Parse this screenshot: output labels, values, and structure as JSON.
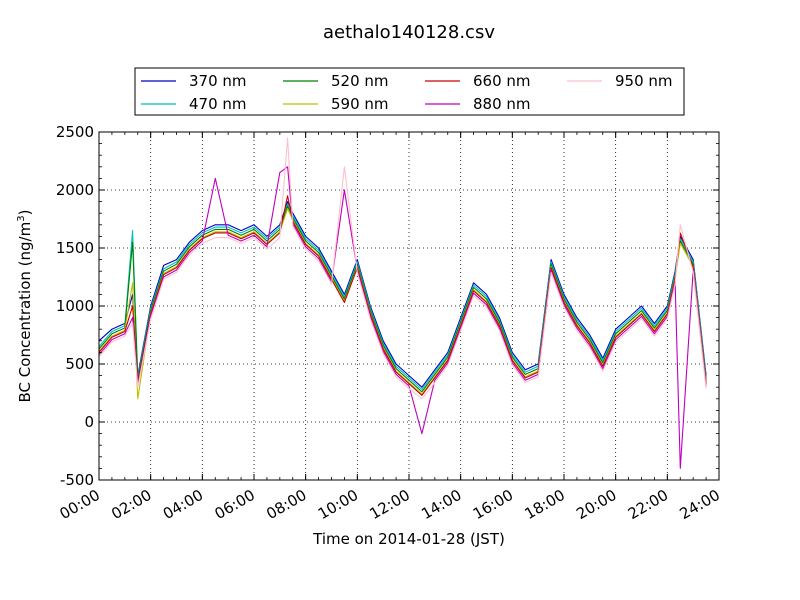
{
  "chart_data": {
    "type": "line",
    "title": "aethalo140128.csv",
    "xlabel": "Time on 2014-01-28 (JST)",
    "ylabel": "BC Concentration (ng/m",
    "ylabel_sup": "3",
    "ylabel_end": ")",
    "xlim": [
      "00:00",
      "24:00"
    ],
    "ylim": [
      -500,
      2500
    ],
    "x_ticks": [
      "00:00",
      "02:00",
      "04:00",
      "06:00",
      "08:00",
      "10:00",
      "12:00",
      "14:00",
      "16:00",
      "18:00",
      "20:00",
      "22:00",
      "24:00"
    ],
    "y_ticks": [
      "-500",
      "0",
      "500",
      "1000",
      "1500",
      "2000",
      "2500"
    ],
    "grid": true,
    "legend_position": "top-center",
    "x_hours": [
      0.0,
      0.5,
      1.0,
      1.3,
      1.5,
      2.0,
      2.5,
      3.0,
      3.5,
      4.0,
      4.5,
      5.0,
      5.5,
      6.0,
      6.5,
      7.0,
      7.3,
      7.5,
      8.0,
      8.5,
      9.0,
      9.5,
      10.0,
      10.5,
      11.0,
      11.5,
      12.0,
      12.5,
      13.0,
      13.5,
      14.0,
      14.5,
      15.0,
      15.5,
      16.0,
      16.5,
      17.0,
      17.5,
      18.0,
      18.5,
      19.0,
      19.5,
      20.0,
      20.5,
      21.0,
      21.5,
      22.0,
      22.3,
      22.5,
      23.0,
      23.5
    ],
    "series": [
      {
        "name": "370 nm",
        "color": "#0000cc",
        "values": [
          700,
          800,
          850,
          1100,
          400,
          1000,
          1350,
          1400,
          1550,
          1650,
          1700,
          1700,
          1650,
          1700,
          1600,
          1700,
          1900,
          1800,
          1600,
          1500,
          1300,
          1100,
          1400,
          1000,
          700,
          500,
          400,
          300,
          450,
          600,
          900,
          1200,
          1100,
          900,
          600,
          450,
          500,
          1400,
          1100,
          900,
          750,
          550,
          800,
          900,
          1000,
          850,
          1000,
          1300,
          1600,
          1400,
          400
        ]
      },
      {
        "name": "470 nm",
        "color": "#00bfbf",
        "values": [
          650,
          780,
          830,
          1650,
          380,
          980,
          1320,
          1380,
          1530,
          1630,
          1680,
          1680,
          1630,
          1680,
          1580,
          1680,
          1880,
          1780,
          1580,
          1480,
          1280,
          1080,
          1380,
          980,
          680,
          480,
          380,
          280,
          430,
          580,
          880,
          1180,
          1080,
          880,
          580,
          430,
          480,
          1380,
          1080,
          880,
          730,
          530,
          780,
          880,
          980,
          830,
          980,
          1280,
          1580,
          1380,
          380
        ]
      },
      {
        "name": "520 nm",
        "color": "#008000",
        "values": [
          630,
          760,
          810,
          1550,
          360,
          960,
          1300,
          1360,
          1510,
          1610,
          1660,
          1660,
          1610,
          1660,
          1560,
          1660,
          1860,
          1760,
          1560,
          1460,
          1260,
          1060,
          1360,
          960,
          660,
          460,
          360,
          260,
          410,
          560,
          860,
          1160,
          1060,
          860,
          560,
          410,
          460,
          1360,
          1060,
          860,
          710,
          510,
          760,
          860,
          960,
          810,
          960,
          1260,
          1560,
          1360,
          360
        ]
      },
      {
        "name": "590 nm",
        "color": "#bfbf00",
        "values": [
          610,
          740,
          790,
          1200,
          200,
          940,
          1280,
          1340,
          1490,
          1590,
          1640,
          1640,
          1590,
          1640,
          1540,
          1640,
          1840,
          1740,
          1540,
          1440,
          1240,
          1040,
          1340,
          940,
          640,
          440,
          340,
          240,
          390,
          540,
          840,
          1140,
          1040,
          840,
          540,
          390,
          440,
          1340,
          1040,
          840,
          690,
          490,
          740,
          840,
          940,
          790,
          940,
          1240,
          1540,
          1340,
          340
        ]
      },
      {
        "name": "660 nm",
        "color": "#cc0000",
        "values": [
          600,
          730,
          780,
          1000,
          340,
          930,
          1270,
          1330,
          1480,
          1580,
          1630,
          1630,
          1580,
          1630,
          1530,
          1630,
          1950,
          1730,
          1530,
          1430,
          1230,
          1030,
          1330,
          930,
          630,
          430,
          330,
          230,
          380,
          530,
          830,
          1130,
          1030,
          830,
          530,
          380,
          430,
          1330,
          1030,
          830,
          680,
          480,
          730,
          830,
          930,
          780,
          930,
          1230,
          1630,
          1330,
          330
        ]
      },
      {
        "name": "880 nm",
        "color": "#bf00bf",
        "values": [
          580,
          710,
          760,
          900,
          320,
          910,
          1250,
          1310,
          1460,
          1560,
          2100,
          1610,
          1560,
          1610,
          1510,
          2150,
          2200,
          1710,
          1510,
          1410,
          1210,
          2000,
          1310,
          910,
          610,
          410,
          310,
          -100,
          360,
          510,
          810,
          1110,
          1010,
          810,
          510,
          360,
          410,
          1310,
          1010,
          810,
          660,
          460,
          710,
          810,
          910,
          760,
          910,
          1210,
          -400,
          1310,
          310
        ]
      },
      {
        "name": "950 nm",
        "color": "#ffc0cb",
        "values": [
          560,
          690,
          740,
          850,
          300,
          890,
          1230,
          1290,
          1440,
          1540,
          1590,
          1590,
          1540,
          1590,
          1490,
          1590,
          2450,
          1690,
          1490,
          1390,
          1190,
          2200,
          1290,
          890,
          590,
          390,
          290,
          200,
          340,
          490,
          790,
          1090,
          990,
          790,
          490,
          340,
          390,
          1290,
          990,
          790,
          640,
          440,
          690,
          790,
          890,
          740,
          890,
          1190,
          1700,
          1290,
          290
        ]
      }
    ]
  }
}
